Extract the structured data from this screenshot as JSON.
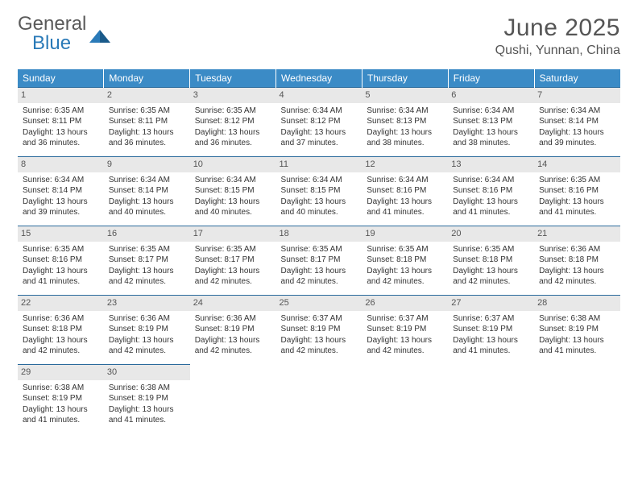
{
  "logo": {
    "word1": "General",
    "word2": "Blue"
  },
  "title": "June 2025",
  "location": "Qushi, Yunnan, China",
  "colors": {
    "header_bg": "#3b8bc6",
    "header_text": "#ffffff",
    "daynum_bg": "#e8e8e8",
    "row_divider": "#2a6a9c",
    "logo_gray": "#5a5a5a",
    "logo_blue": "#2a7ab8",
    "body_text": "#333333"
  },
  "weekdays": [
    "Sunday",
    "Monday",
    "Tuesday",
    "Wednesday",
    "Thursday",
    "Friday",
    "Saturday"
  ],
  "weeks": [
    [
      {
        "n": "1",
        "sr": "6:35 AM",
        "ss": "8:11 PM",
        "dh": "13",
        "dm": "36"
      },
      {
        "n": "2",
        "sr": "6:35 AM",
        "ss": "8:11 PM",
        "dh": "13",
        "dm": "36"
      },
      {
        "n": "3",
        "sr": "6:35 AM",
        "ss": "8:12 PM",
        "dh": "13",
        "dm": "36"
      },
      {
        "n": "4",
        "sr": "6:34 AM",
        "ss": "8:12 PM",
        "dh": "13",
        "dm": "37"
      },
      {
        "n": "5",
        "sr": "6:34 AM",
        "ss": "8:13 PM",
        "dh": "13",
        "dm": "38"
      },
      {
        "n": "6",
        "sr": "6:34 AM",
        "ss": "8:13 PM",
        "dh": "13",
        "dm": "38"
      },
      {
        "n": "7",
        "sr": "6:34 AM",
        "ss": "8:14 PM",
        "dh": "13",
        "dm": "39"
      }
    ],
    [
      {
        "n": "8",
        "sr": "6:34 AM",
        "ss": "8:14 PM",
        "dh": "13",
        "dm": "39"
      },
      {
        "n": "9",
        "sr": "6:34 AM",
        "ss": "8:14 PM",
        "dh": "13",
        "dm": "40"
      },
      {
        "n": "10",
        "sr": "6:34 AM",
        "ss": "8:15 PM",
        "dh": "13",
        "dm": "40"
      },
      {
        "n": "11",
        "sr": "6:34 AM",
        "ss": "8:15 PM",
        "dh": "13",
        "dm": "40"
      },
      {
        "n": "12",
        "sr": "6:34 AM",
        "ss": "8:16 PM",
        "dh": "13",
        "dm": "41"
      },
      {
        "n": "13",
        "sr": "6:34 AM",
        "ss": "8:16 PM",
        "dh": "13",
        "dm": "41"
      },
      {
        "n": "14",
        "sr": "6:35 AM",
        "ss": "8:16 PM",
        "dh": "13",
        "dm": "41"
      }
    ],
    [
      {
        "n": "15",
        "sr": "6:35 AM",
        "ss": "8:16 PM",
        "dh": "13",
        "dm": "41"
      },
      {
        "n": "16",
        "sr": "6:35 AM",
        "ss": "8:17 PM",
        "dh": "13",
        "dm": "42"
      },
      {
        "n": "17",
        "sr": "6:35 AM",
        "ss": "8:17 PM",
        "dh": "13",
        "dm": "42"
      },
      {
        "n": "18",
        "sr": "6:35 AM",
        "ss": "8:17 PM",
        "dh": "13",
        "dm": "42"
      },
      {
        "n": "19",
        "sr": "6:35 AM",
        "ss": "8:18 PM",
        "dh": "13",
        "dm": "42"
      },
      {
        "n": "20",
        "sr": "6:35 AM",
        "ss": "8:18 PM",
        "dh": "13",
        "dm": "42"
      },
      {
        "n": "21",
        "sr": "6:36 AM",
        "ss": "8:18 PM",
        "dh": "13",
        "dm": "42"
      }
    ],
    [
      {
        "n": "22",
        "sr": "6:36 AM",
        "ss": "8:18 PM",
        "dh": "13",
        "dm": "42"
      },
      {
        "n": "23",
        "sr": "6:36 AM",
        "ss": "8:19 PM",
        "dh": "13",
        "dm": "42"
      },
      {
        "n": "24",
        "sr": "6:36 AM",
        "ss": "8:19 PM",
        "dh": "13",
        "dm": "42"
      },
      {
        "n": "25",
        "sr": "6:37 AM",
        "ss": "8:19 PM",
        "dh": "13",
        "dm": "42"
      },
      {
        "n": "26",
        "sr": "6:37 AM",
        "ss": "8:19 PM",
        "dh": "13",
        "dm": "42"
      },
      {
        "n": "27",
        "sr": "6:37 AM",
        "ss": "8:19 PM",
        "dh": "13",
        "dm": "41"
      },
      {
        "n": "28",
        "sr": "6:38 AM",
        "ss": "8:19 PM",
        "dh": "13",
        "dm": "41"
      }
    ],
    [
      {
        "n": "29",
        "sr": "6:38 AM",
        "ss": "8:19 PM",
        "dh": "13",
        "dm": "41"
      },
      {
        "n": "30",
        "sr": "6:38 AM",
        "ss": "8:19 PM",
        "dh": "13",
        "dm": "41"
      },
      null,
      null,
      null,
      null,
      null
    ]
  ],
  "labels": {
    "sunrise": "Sunrise:",
    "sunset": "Sunset:",
    "daylight": "Daylight:",
    "hours": "hours",
    "and": "and",
    "minutes": "minutes."
  }
}
